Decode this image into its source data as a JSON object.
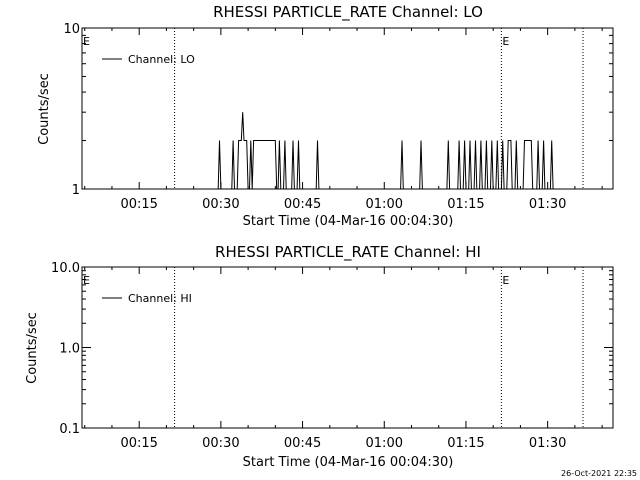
{
  "footer": {
    "timestamp": "26-Oct-2021 22:35"
  },
  "chart_data": [
    {
      "type": "line",
      "title": "RHESSI PARTICLE_RATE Channel: LO",
      "xlabel": "Start Time (04-Mar-16 00:04:30)",
      "ylabel": "Counts/sec",
      "yscale": "log",
      "ylim": [
        1,
        10
      ],
      "xlim": [
        "00:04:30",
        "01:42:00"
      ],
      "x_ticks": [
        "00:15",
        "00:30",
        "00:45",
        "01:00",
        "01:15",
        "01:30"
      ],
      "y_ticks": [
        "1",
        "10"
      ],
      "legend": {
        "placement": "top-left",
        "entries": [
          "Channel: LO"
        ]
      },
      "flags": [
        {
          "x": "00:04:30",
          "label": "E"
        },
        {
          "x": "01:21:30",
          "label": "E"
        }
      ],
      "vlines": [
        "00:21:30",
        "01:21:30",
        "01:36:30"
      ],
      "series": [
        {
          "name": "Channel: LO",
          "color": "#000000",
          "points": [
            [
              "00:29:30",
              1
            ],
            [
              "00:29:45",
              2
            ],
            [
              "00:30:00",
              1
            ],
            [
              "00:32:00",
              1
            ],
            [
              "00:32:15",
              2
            ],
            [
              "00:32:30",
              1
            ],
            [
              "00:33:00",
              1
            ],
            [
              "00:33:15",
              2
            ],
            [
              "00:33:45",
              2
            ],
            [
              "00:34:00",
              3
            ],
            [
              "00:34:15",
              2
            ],
            [
              "00:34:45",
              2
            ],
            [
              "00:35:00",
              1
            ],
            [
              "00:35:15",
              1
            ],
            [
              "00:35:30",
              2
            ],
            [
              "00:35:45",
              1
            ],
            [
              "00:36:00",
              2
            ],
            [
              "00:40:00",
              2
            ],
            [
              "00:40:15",
              1
            ],
            [
              "00:40:30",
              1
            ],
            [
              "00:40:45",
              2
            ],
            [
              "00:41:00",
              1
            ],
            [
              "00:41:30",
              1
            ],
            [
              "00:41:45",
              2
            ],
            [
              "00:42:00",
              1
            ],
            [
              "00:43:00",
              1
            ],
            [
              "00:43:15",
              2
            ],
            [
              "00:43:30",
              1
            ],
            [
              "00:44:00",
              1
            ],
            [
              "00:44:15",
              2
            ],
            [
              "00:44:30",
              1
            ],
            [
              "00:47:30",
              1
            ],
            [
              "00:47:45",
              2
            ],
            [
              "00:48:00",
              1
            ],
            [
              "01:03:00",
              1
            ],
            [
              "01:03:15",
              2
            ],
            [
              "01:03:30",
              1
            ],
            [
              "01:06:30",
              1
            ],
            [
              "01:06:45",
              2
            ],
            [
              "01:07:00",
              1
            ],
            [
              "01:11:30",
              1
            ],
            [
              "01:11:45",
              2
            ],
            [
              "01:12:00",
              1
            ],
            [
              "01:13:30",
              1
            ],
            [
              "01:13:45",
              2
            ],
            [
              "01:14:00",
              1
            ],
            [
              "01:14:30",
              1
            ],
            [
              "01:14:45",
              2
            ],
            [
              "01:15:00",
              1
            ],
            [
              "01:15:30",
              1
            ],
            [
              "01:15:45",
              2
            ],
            [
              "01:16:00",
              1
            ],
            [
              "01:16:30",
              1
            ],
            [
              "01:16:45",
              2
            ],
            [
              "01:17:00",
              1
            ],
            [
              "01:17:30",
              1
            ],
            [
              "01:17:45",
              2
            ],
            [
              "01:18:00",
              1
            ],
            [
              "01:18:30",
              1
            ],
            [
              "01:18:45",
              2
            ],
            [
              "01:19:00",
              1
            ],
            [
              "01:19:30",
              1
            ],
            [
              "01:19:45",
              2
            ],
            [
              "01:20:00",
              1
            ],
            [
              "01:20:30",
              1
            ],
            [
              "01:20:45",
              2
            ],
            [
              "01:21:00",
              1
            ],
            [
              "01:21:30",
              1
            ],
            [
              "01:21:45",
              2
            ],
            [
              "01:22:00",
              1
            ],
            [
              "01:22:30",
              1
            ],
            [
              "01:22:45",
              2
            ],
            [
              "01:23:15",
              2
            ],
            [
              "01:23:30",
              1
            ],
            [
              "01:24:00",
              1
            ],
            [
              "01:24:15",
              2
            ],
            [
              "01:24:30",
              1
            ],
            [
              "01:25:30",
              1
            ],
            [
              "01:25:45",
              2
            ],
            [
              "01:27:00",
              2
            ],
            [
              "01:27:15",
              1
            ],
            [
              "01:28:00",
              1
            ],
            [
              "01:28:15",
              2
            ],
            [
              "01:28:30",
              1
            ],
            [
              "01:29:00",
              1
            ],
            [
              "01:29:15",
              2
            ],
            [
              "01:29:30",
              1
            ],
            [
              "01:30:30",
              1
            ],
            [
              "01:30:45",
              2
            ],
            [
              "01:31:00",
              1
            ]
          ]
        }
      ]
    },
    {
      "type": "line",
      "title": "RHESSI PARTICLE_RATE Channel: HI",
      "xlabel": "Start Time (04-Mar-16 00:04:30)",
      "ylabel": "Counts/sec",
      "yscale": "log",
      "ylim": [
        0.1,
        10
      ],
      "xlim": [
        "00:04:30",
        "01:42:00"
      ],
      "x_ticks": [
        "00:15",
        "00:30",
        "00:45",
        "01:00",
        "01:15",
        "01:30"
      ],
      "y_ticks": [
        "0.1",
        "1.0",
        "10.0"
      ],
      "legend": {
        "placement": "top-left",
        "entries": [
          "Channel: HI"
        ]
      },
      "flags": [
        {
          "x": "00:04:30",
          "label": "E"
        },
        {
          "x": "01:21:30",
          "label": "E"
        }
      ],
      "vlines": [
        "00:21:30",
        "01:21:30",
        "01:36:30"
      ],
      "series": [
        {
          "name": "Channel: HI",
          "color": "#000000",
          "points": []
        }
      ]
    }
  ]
}
